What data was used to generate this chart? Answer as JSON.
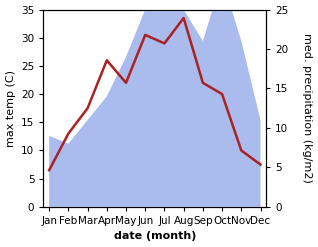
{
  "months": [
    "Jan",
    "Feb",
    "Mar",
    "Apr",
    "May",
    "Jun",
    "Jul",
    "Aug",
    "Sep",
    "Oct",
    "Nov",
    "Dec"
  ],
  "temp_max": [
    6.5,
    13.0,
    17.5,
    26.0,
    22.0,
    30.5,
    29.0,
    33.5,
    22.0,
    20.0,
    10.0,
    7.5
  ],
  "precipitation": [
    9,
    8,
    11,
    14,
    19,
    25,
    33,
    25,
    21,
    29,
    21,
    11
  ],
  "temp_ylim": [
    0,
    35
  ],
  "precip_ylim": [
    0,
    25
  ],
  "xlabel": "date (month)",
  "ylabel_left": "max temp (C)",
  "ylabel_right": "med. precipitation (kg/m2)",
  "line_color": "#aa2222",
  "fill_color": "#aabbee",
  "fill_alpha": 1.0,
  "bg_color": "#ffffff",
  "label_fontsize": 8,
  "tick_fontsize": 7.5
}
